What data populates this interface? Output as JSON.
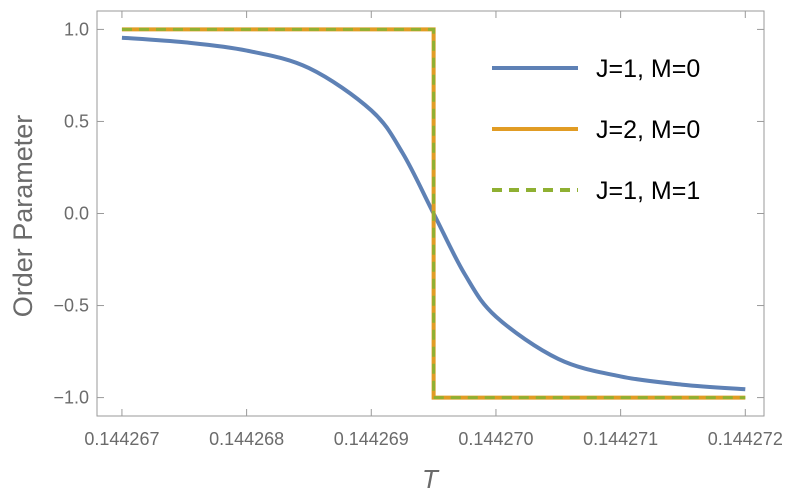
{
  "chart_data": {
    "type": "line",
    "xlabel": "T",
    "ylabel": "Order Parameter",
    "xlim": [
      0.1442668,
      0.14427215
    ],
    "ylim": [
      -1.1,
      1.1
    ],
    "x_ticks": [
      0.144267,
      0.144268,
      0.144269,
      0.14427,
      0.144271,
      0.144272
    ],
    "x_tick_labels": [
      "0.144267",
      "0.144268",
      "0.144269",
      "0.144270",
      "0.144271",
      "0.144272"
    ],
    "y_ticks": [
      1.0,
      0.5,
      0.0,
      -0.5,
      -1.0
    ],
    "y_tick_labels": [
      "1.0",
      "0.5",
      "0.0",
      "−0.5",
      "−1.0"
    ],
    "legend_placement": "top-right",
    "series": [
      {
        "name": "J=1, M=0",
        "color": "#5e81b5",
        "style": "solid",
        "x": [
          0.144267,
          0.1442675,
          0.144268,
          0.1442685,
          0.144269,
          0.14426925,
          0.1442695,
          0.14426975,
          0.14427,
          0.1442705,
          0.144271,
          0.1442715,
          0.144272
        ],
        "y": [
          0.955,
          0.93,
          0.885,
          0.79,
          0.56,
          0.33,
          0.0,
          -0.33,
          -0.56,
          -0.79,
          -0.885,
          -0.93,
          -0.955
        ]
      },
      {
        "name": "J=2, M=0",
        "color": "#e19c24",
        "style": "solid",
        "x": [
          0.144267,
          0.1442695,
          0.1442695,
          0.144272
        ],
        "y": [
          1.0,
          1.0,
          -1.0,
          -1.0
        ]
      },
      {
        "name": "J=1, M=1",
        "color": "#8fb032",
        "style": "dashed",
        "x": [
          0.144267,
          0.1442695,
          0.1442695,
          0.144272
        ],
        "y": [
          1.0,
          1.0,
          -1.0,
          -1.0
        ]
      }
    ]
  }
}
